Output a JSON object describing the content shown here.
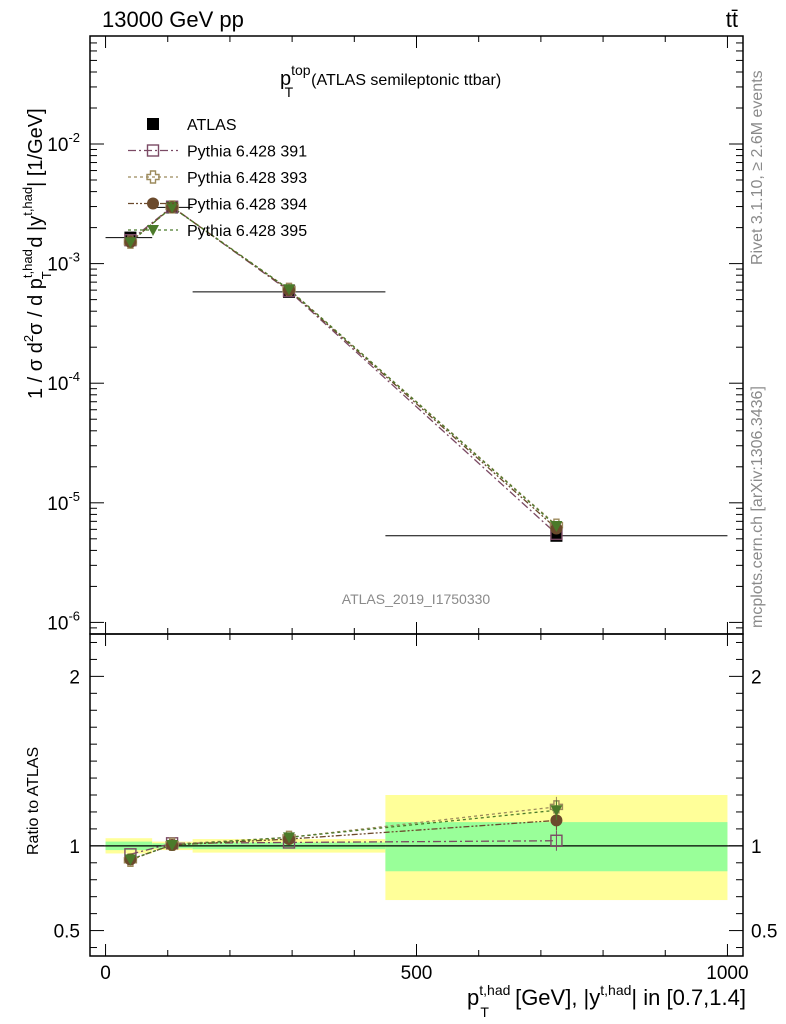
{
  "header": {
    "energy_label": "13000 GeV pp",
    "process_label": "tt̄"
  },
  "side": {
    "rivet_label": "Rivet 3.1.10, ≥ 2.6M events",
    "mcplots_label": "mcplots.cern.ch [arXiv:1306.3436]"
  },
  "chart_data": [
    {
      "type": "line",
      "panel": "main",
      "title_main": "p",
      "title_sup": "top",
      "title_sub": "T",
      "title_rest": "(ATLAS semileptonic ttbar)",
      "analysis_label": "ATLAS_2019_I1750330",
      "ylabel_parts": {
        "a": "1 / σ d",
        "sup2": "2",
        "b": "σ / d p",
        "sup_thad1": "t,had",
        "sub_T": "T",
        "c": " d |y",
        "sup_thad2": "t,had",
        "d": "| [1/GeV]"
      },
      "yscale": "log",
      "ylim": [
        8e-07,
        0.08
      ],
      "xlim": [
        -25,
        1025
      ],
      "ytick_labels": [
        {
          "base": "10",
          "exp": "-6",
          "value": 1e-06
        },
        {
          "base": "10",
          "exp": "-5",
          "value": 1e-05
        },
        {
          "base": "10",
          "exp": "-4",
          "value": 0.0001
        },
        {
          "base": "10",
          "exp": "-3",
          "value": 0.001
        },
        {
          "base": "10",
          "exp": "-2",
          "value": 0.01
        }
      ],
      "x": [
        40,
        107,
        295,
        725
      ],
      "bin_edges": [
        0,
        75,
        140,
        450,
        1000
      ],
      "series": [
        {
          "name": "ATLAS",
          "values": [
            0.00165,
            0.00295,
            0.00058,
            5.3e-06
          ],
          "color": "#000000",
          "marker": "square"
        },
        {
          "name": "Pythia 6.428 391",
          "values": [
            0.00157,
            0.00299,
            0.00059,
            5.5e-06
          ],
          "color": "#7b4a64",
          "marker": "open-square",
          "dash": "8,3,2,3"
        },
        {
          "name": "Pythia 6.428 393",
          "values": [
            0.00151,
            0.00298,
            0.00061,
            6.5e-06
          ],
          "color": "#9c8a5c",
          "marker": "open-cross",
          "dash": "3,3"
        },
        {
          "name": "Pythia 6.428 394",
          "values": [
            0.00152,
            0.00297,
            0.0006,
            6.1e-06
          ],
          "color": "#6b4a2c",
          "marker": "circle",
          "dash": "6,2,2,2,2,2"
        },
        {
          "name": "Pythia 6.428 395",
          "values": [
            0.00151,
            0.00296,
            0.00061,
            6.4e-06
          ],
          "color": "#4b7a2a",
          "marker": "triangle-down",
          "dash": "3,3"
        }
      ]
    },
    {
      "type": "line",
      "panel": "ratio",
      "ylabel": "Ratio to ATLAS",
      "ylim": [
        0.35,
        2.25
      ],
      "xlim": [
        -25,
        1025
      ],
      "ytick_labels": [
        "0.5",
        "1",
        "2"
      ],
      "ytick_values": [
        0.5,
        1,
        2
      ],
      "xtick_labels": [
        "0",
        "500",
        "1000"
      ],
      "xtick_values": [
        0,
        500,
        1000
      ],
      "xlabel_parts": {
        "a": "p",
        "sup1": "t,had",
        "sub": "T",
        "b": " [GeV], |y",
        "sup2": "t,had",
        "c": "| in [0.7,1.4]"
      },
      "bands": [
        {
          "x0": 0,
          "x1": 75,
          "yellow": [
            0.955,
            1.045
          ],
          "green": [
            0.975,
            1.025
          ]
        },
        {
          "x0": 75,
          "x1": 140,
          "yellow": [
            0.975,
            1.025
          ],
          "green": [
            0.985,
            1.015
          ]
        },
        {
          "x0": 140,
          "x1": 450,
          "yellow": [
            0.96,
            1.04
          ],
          "green": [
            0.98,
            1.02
          ]
        },
        {
          "x0": 450,
          "x1": 1000,
          "yellow": [
            0.68,
            1.3
          ],
          "green": [
            0.85,
            1.14
          ]
        }
      ],
      "x": [
        40,
        107,
        295,
        725
      ],
      "series": [
        {
          "name": "Pythia 6.428 391",
          "values": [
            0.95,
            1.015,
            1.02,
            1.03
          ],
          "color": "#7b4a64",
          "marker": "open-square",
          "dash": "8,3,2,3"
        },
        {
          "name": "Pythia 6.428 393",
          "values": [
            0.915,
            1.01,
            1.05,
            1.23
          ],
          "color": "#9c8a5c",
          "marker": "open-cross",
          "dash": "3,3"
        },
        {
          "name": "Pythia 6.428 394",
          "values": [
            0.92,
            1.005,
            1.04,
            1.15
          ],
          "color": "#6b4a2c",
          "marker": "circle",
          "dash": "6,2,2,2,2,2"
        },
        {
          "name": "Pythia 6.428 395",
          "values": [
            0.92,
            1.005,
            1.05,
            1.21
          ],
          "color": "#4b7a2a",
          "marker": "triangle-down",
          "dash": "3,3"
        }
      ]
    }
  ]
}
